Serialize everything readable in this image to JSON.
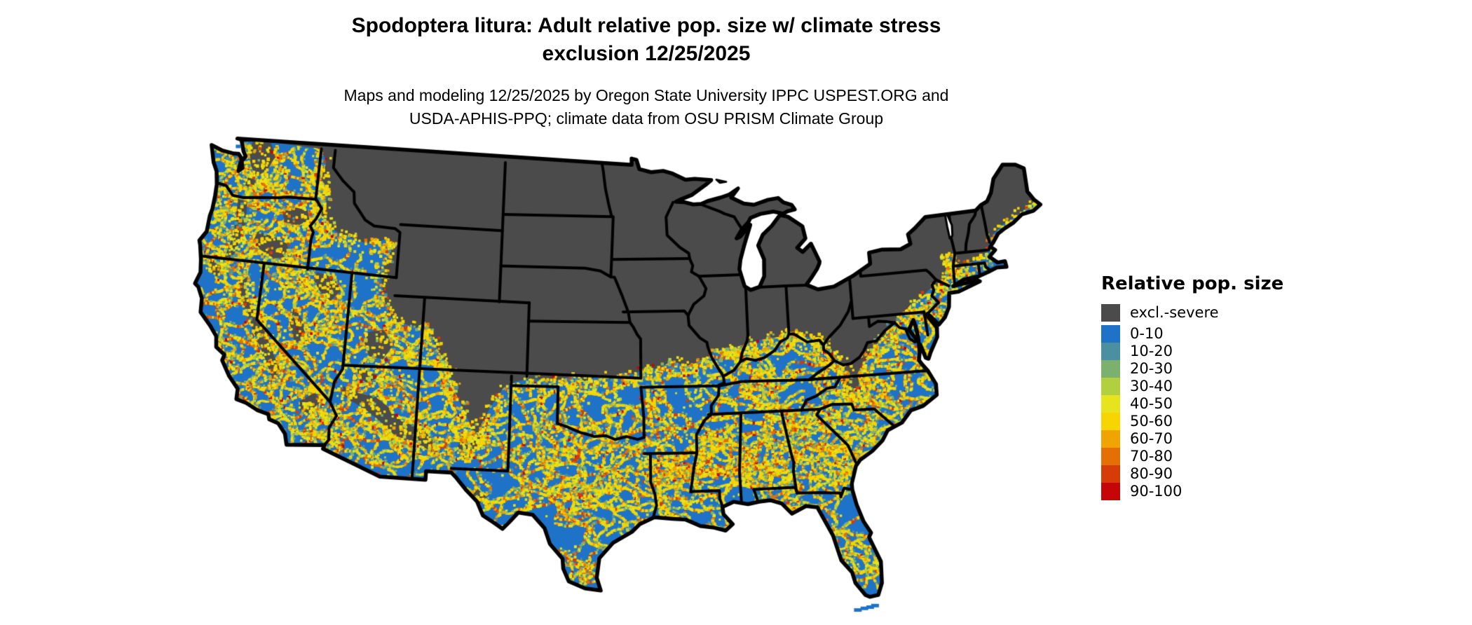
{
  "title": {
    "line1": "Spodoptera litura: Adult relative pop. size w/ climate stress",
    "line2": "exclusion 12/25/2025"
  },
  "subtitle": {
    "line1": "Maps and modeling 12/25/2025 by Oregon State University IPPC USPEST.ORG and",
    "line2": "USDA-APHIS-PPQ; climate data from OSU PRISM Climate Group"
  },
  "legend": {
    "title": "Relative pop. size",
    "items": [
      {
        "label": "excl.-severe",
        "color": "#4B4B4B"
      },
      {
        "label": "0-10",
        "color": "#1E73C8"
      },
      {
        "label": "10-20",
        "color": "#4A90A0"
      },
      {
        "label": "20-30",
        "color": "#7CB06E"
      },
      {
        "label": "30-40",
        "color": "#B2CF3E"
      },
      {
        "label": "40-50",
        "color": "#E6E51D"
      },
      {
        "label": "50-60",
        "color": "#F6D500"
      },
      {
        "label": "60-70",
        "color": "#EFA402"
      },
      {
        "label": "70-80",
        "color": "#E47005"
      },
      {
        "label": "80-90",
        "color": "#D63C06"
      },
      {
        "label": "90-100",
        "color": "#C60508"
      }
    ]
  },
  "map": {
    "region": "Continental United States",
    "kind": "raster choropleth of relative population size",
    "border_color": "#000000",
    "water_color": "#FFFFFF"
  }
}
